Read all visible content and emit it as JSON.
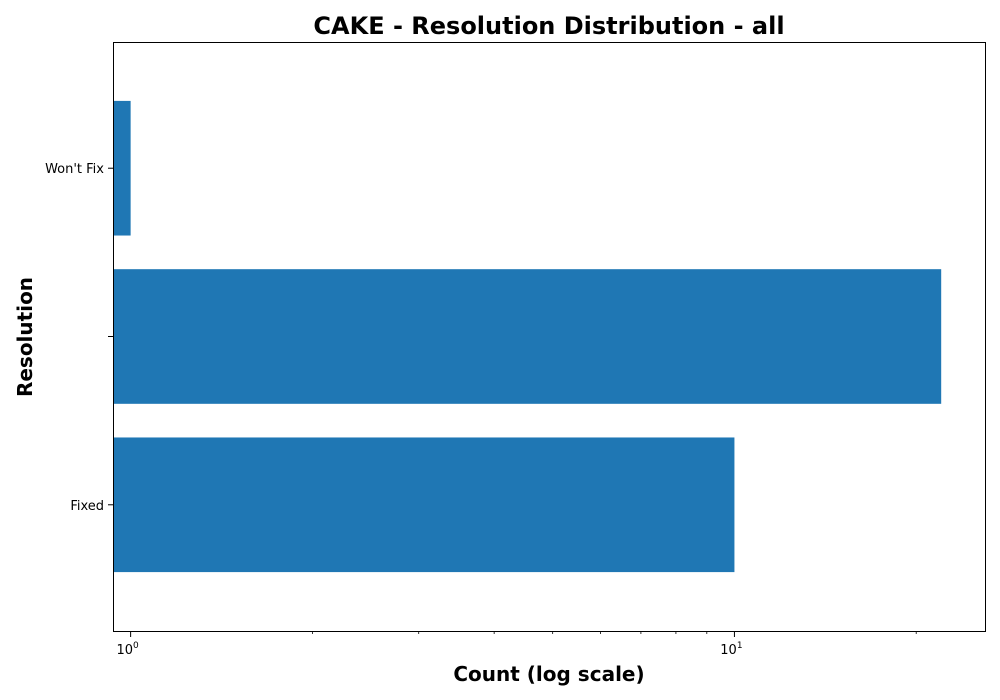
{
  "chart_data": {
    "type": "bar",
    "orientation": "horizontal",
    "title": "CAKE - Resolution Distribution - all",
    "xlabel": "Count (log scale)",
    "ylabel": "Resolution",
    "xscale": "log",
    "xlim": [
      0.935,
      26
    ],
    "categories": [
      "Fixed",
      "",
      "Won't Fix"
    ],
    "values": [
      10,
      22,
      1
    ],
    "x_ticks": [
      {
        "value": 1,
        "base": "10",
        "exp": "0"
      },
      {
        "value": 10,
        "base": "10",
        "exp": "1"
      }
    ],
    "bar_color": "#1f77b4",
    "grid": false,
    "legend": "none"
  }
}
